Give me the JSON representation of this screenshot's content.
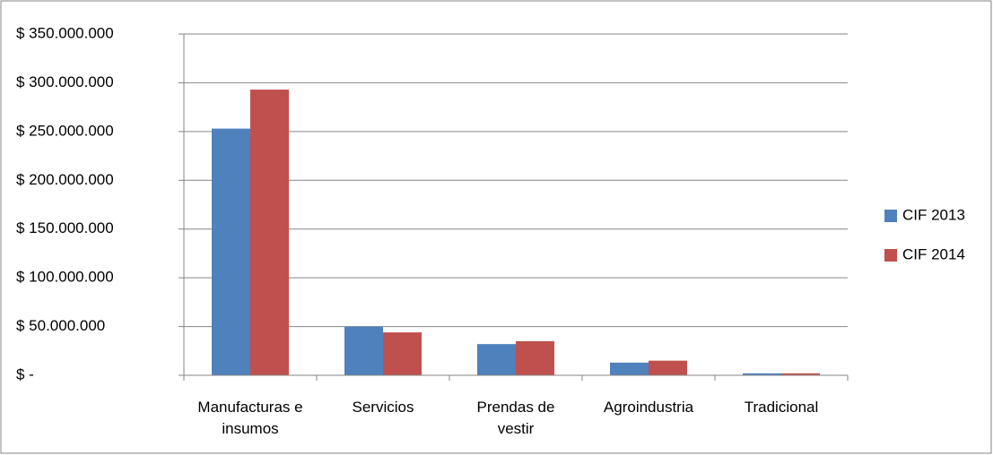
{
  "chart_data": {
    "type": "bar",
    "categories": [
      "Manufacturas e insumos",
      "Servicios",
      "Prendas de vestir",
      "Agroindustria",
      "Tradicional"
    ],
    "series": [
      {
        "name": "CIF 2013",
        "color": "#4f81bd",
        "values": [
          253000000,
          50000000,
          32000000,
          13000000,
          2000000
        ]
      },
      {
        "name": "CIF 2014",
        "color": "#c0504d",
        "values": [
          293000000,
          44000000,
          35000000,
          15000000,
          2000000
        ]
      }
    ],
    "ylim": [
      0,
      350000000
    ],
    "yticks": [
      {
        "value": 0,
        "label": "$ -"
      },
      {
        "value": 50000000,
        "label": "$ 50.000.000"
      },
      {
        "value": 100000000,
        "label": "$ 100.000.000"
      },
      {
        "value": 150000000,
        "label": "$ 150.000.000"
      },
      {
        "value": 200000000,
        "label": "$ 200.000.000"
      },
      {
        "value": 250000000,
        "label": "$ 250.000.000"
      },
      {
        "value": 300000000,
        "label": "$ 300.000.000"
      },
      {
        "value": 350000000,
        "label": "$ 350.000.000"
      }
    ],
    "grid": true,
    "legend": "right"
  }
}
